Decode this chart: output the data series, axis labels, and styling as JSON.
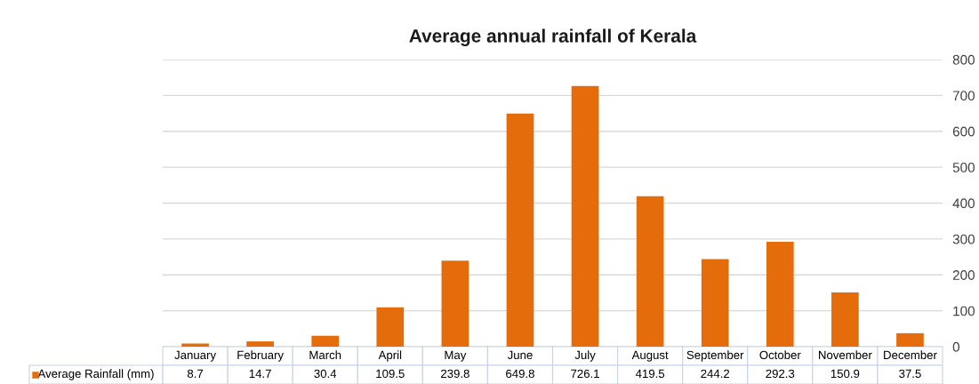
{
  "chart_data": {
    "type": "bar",
    "title": "Average annual rainfall of Kerala",
    "categories": [
      "January",
      "February",
      "March",
      "April",
      "May",
      "June",
      "July",
      "August",
      "September",
      "October",
      "November",
      "December"
    ],
    "series": [
      {
        "name": "Average Rainfall (mm)",
        "color": "#e46c0a",
        "values": [
          8.7,
          14.7,
          30.4,
          109.5,
          239.8,
          649.8,
          726.1,
          419.5,
          244.2,
          292.3,
          150.9,
          37.5
        ]
      }
    ],
    "ylim": [
      0,
      800
    ],
    "yticks": [
      0,
      100,
      200,
      300,
      400,
      500,
      600,
      700,
      800
    ],
    "grid": "y",
    "data_labels": true,
    "legend": "bottom left"
  }
}
